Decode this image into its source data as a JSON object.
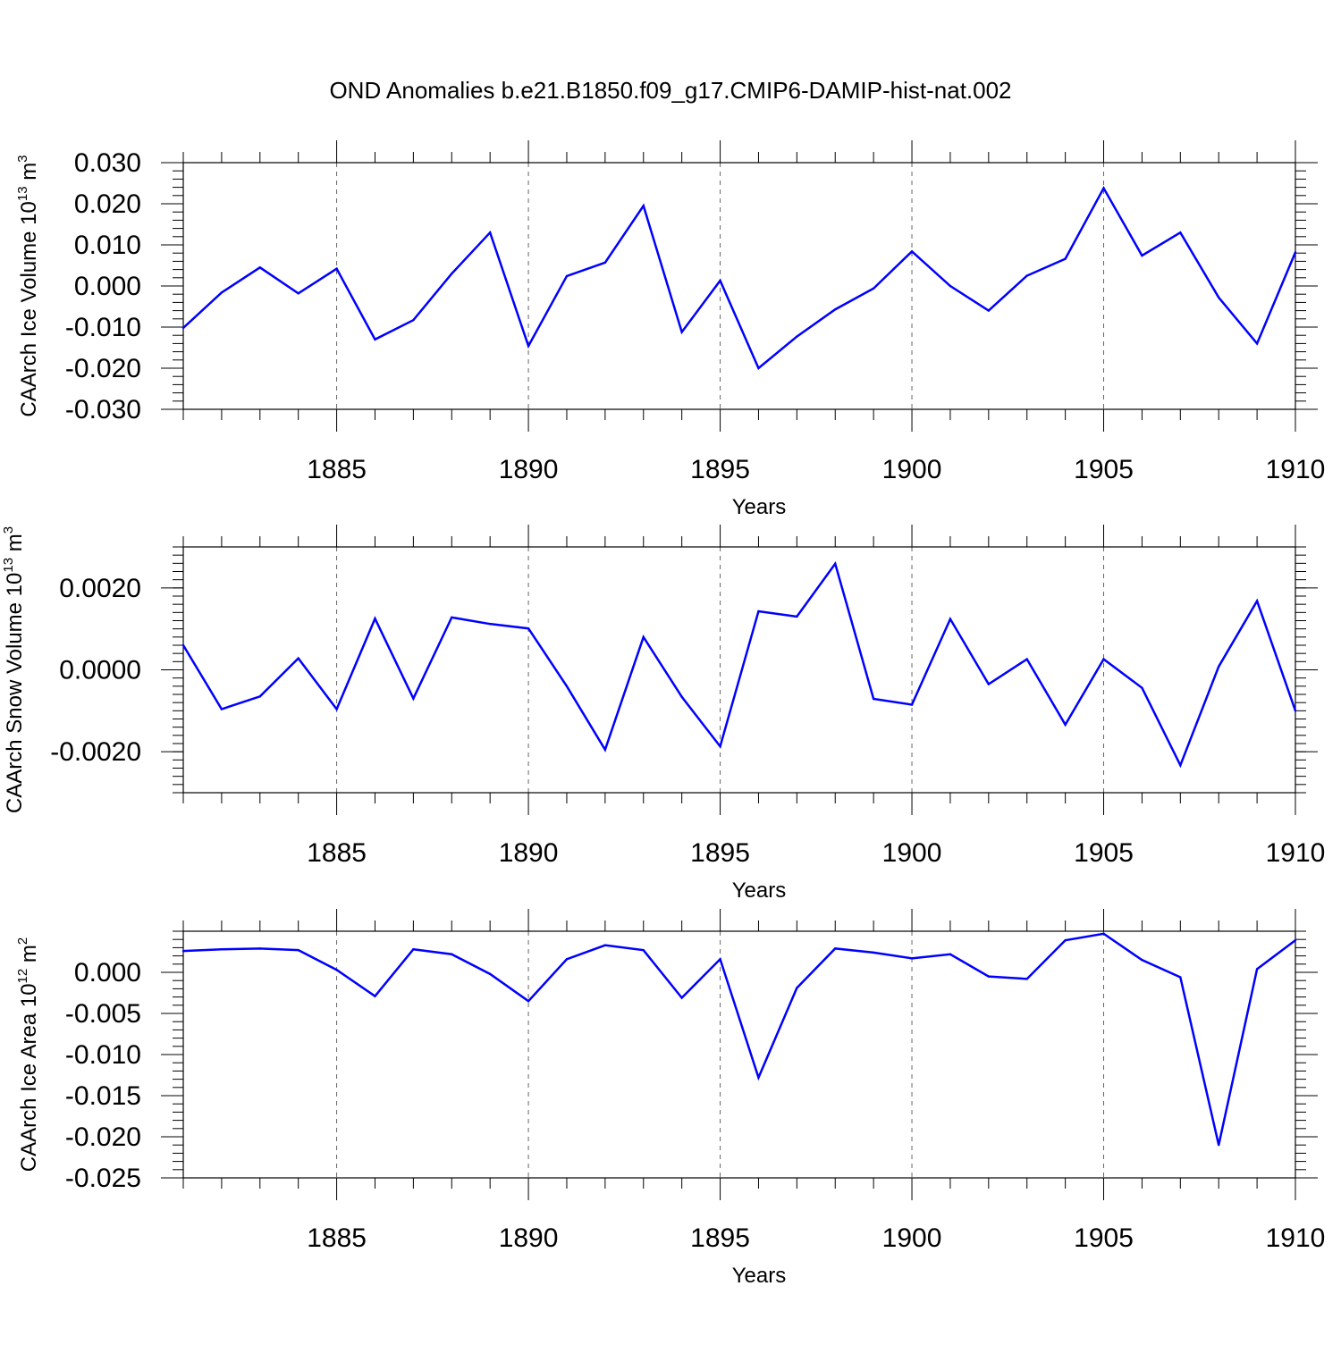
{
  "title": "OND Anomalies b.e21.B1850.f09_g17.CMIP6-DAMIP-hist-nat.002",
  "line_color": "#0000ff",
  "chart_data": [
    {
      "type": "line",
      "id": "ice-volume",
      "ylabel_text": "CAArch Ice Volume 10",
      "ylabel_exp": "13",
      "ylabel_unit": " m",
      "ylabel_unit_exp": "3",
      "xlabel": "Years",
      "xlim": [
        1881,
        1910
      ],
      "ylim": [
        -0.03,
        0.03
      ],
      "yticks": [
        -0.03,
        -0.02,
        -0.01,
        0.0,
        0.01,
        0.02,
        0.03
      ],
      "ytick_labels": [
        "-0.030",
        "-0.020",
        "-0.010",
        "0.000",
        "0.010",
        "0.020",
        "0.030"
      ],
      "yminor_step": 0.002,
      "xticks": [
        1885,
        1890,
        1895,
        1900,
        1905,
        1910
      ],
      "xtick_labels": [
        "1885",
        "1890",
        "1895",
        "1900",
        "1905",
        "1910"
      ],
      "x": [
        1881,
        1882,
        1883,
        1884,
        1885,
        1886,
        1887,
        1888,
        1889,
        1890,
        1891,
        1892,
        1893,
        1894,
        1895,
        1896,
        1897,
        1898,
        1899,
        1900,
        1901,
        1902,
        1903,
        1904,
        1905,
        1906,
        1907,
        1908,
        1909,
        1910
      ],
      "values": [
        -0.0102,
        -0.0016,
        0.0045,
        -0.0018,
        0.0042,
        -0.013,
        -0.0083,
        0.003,
        0.013,
        -0.0146,
        0.0024,
        0.0057,
        0.0195,
        -0.0112,
        0.0013,
        -0.02,
        -0.0123,
        -0.0057,
        -0.0006,
        0.0084,
        0.0,
        -0.006,
        0.0025,
        0.0066,
        0.0238,
        0.0074,
        0.013,
        -0.0028,
        -0.014,
        0.0082
      ]
    },
    {
      "type": "line",
      "id": "snow-volume",
      "ylabel_text": "CAArch Snow Volume 10",
      "ylabel_exp": "13",
      "ylabel_unit": " m",
      "ylabel_unit_exp": "3",
      "xlabel": "Years",
      "xlim": [
        1881,
        1910
      ],
      "ylim": [
        -0.003,
        0.003
      ],
      "yticks": [
        -0.002,
        0.0,
        0.002
      ],
      "ytick_labels": [
        "-0.0020",
        "0.0000",
        "0.0020"
      ],
      "yminor_step": 0.0002,
      "xticks": [
        1885,
        1890,
        1895,
        1900,
        1905,
        1910
      ],
      "xtick_labels": [
        "1885",
        "1890",
        "1895",
        "1900",
        "1905",
        "1910"
      ],
      "x": [
        1881,
        1882,
        1883,
        1884,
        1885,
        1886,
        1887,
        1888,
        1889,
        1890,
        1891,
        1892,
        1893,
        1894,
        1895,
        1896,
        1897,
        1898,
        1899,
        1900,
        1901,
        1902,
        1903,
        1904,
        1905,
        1906,
        1907,
        1908,
        1909,
        1910
      ],
      "values": [
        0.0006,
        -0.00096,
        -0.00065,
        0.00028,
        -0.00096,
        0.00125,
        -0.0007,
        0.00128,
        0.00112,
        0.00101,
        -0.0004,
        -0.00195,
        0.0008,
        -0.00066,
        -0.00187,
        0.00143,
        0.0013,
        0.00259,
        -0.00071,
        -0.00085,
        0.00124,
        -0.00035,
        0.00026,
        -0.00134,
        0.00026,
        -0.00044,
        -0.00233,
        8e-05,
        0.00168,
        -0.001
      ]
    },
    {
      "type": "line",
      "id": "ice-area",
      "ylabel_text": "CAArch Ice Area 10",
      "ylabel_exp": "12",
      "ylabel_unit": " m",
      "ylabel_unit_exp": "2",
      "xlabel": "Years",
      "xlim": [
        1881,
        1910
      ],
      "ylim": [
        -0.025,
        0.005
      ],
      "yticks": [
        -0.025,
        -0.02,
        -0.015,
        -0.01,
        -0.005,
        0.0
      ],
      "ytick_labels": [
        "-0.025",
        "-0.020",
        "-0.015",
        "-0.010",
        "-0.005",
        "0.000"
      ],
      "yminor_step": 0.001,
      "xticks": [
        1885,
        1890,
        1895,
        1900,
        1905,
        1910
      ],
      "xtick_labels": [
        "1885",
        "1890",
        "1895",
        "1900",
        "1905",
        "1910"
      ],
      "x": [
        1881,
        1882,
        1883,
        1884,
        1885,
        1886,
        1887,
        1888,
        1889,
        1890,
        1891,
        1892,
        1893,
        1894,
        1895,
        1896,
        1897,
        1898,
        1899,
        1900,
        1901,
        1902,
        1903,
        1904,
        1905,
        1906,
        1907,
        1908,
        1909,
        1910
      ],
      "values": [
        0.0026,
        0.0028,
        0.0029,
        0.0027,
        0.0003,
        -0.0029,
        0.0028,
        0.0022,
        -0.0002,
        -0.0035,
        0.0016,
        0.0033,
        0.0027,
        -0.0031,
        0.0016,
        -0.0128,
        -0.0019,
        0.0029,
        0.0024,
        0.0017,
        0.0022,
        -0.0005,
        -0.0008,
        0.0039,
        0.0047,
        0.0015,
        -0.0006,
        -0.021,
        0.0004,
        0.0039
      ]
    }
  ]
}
